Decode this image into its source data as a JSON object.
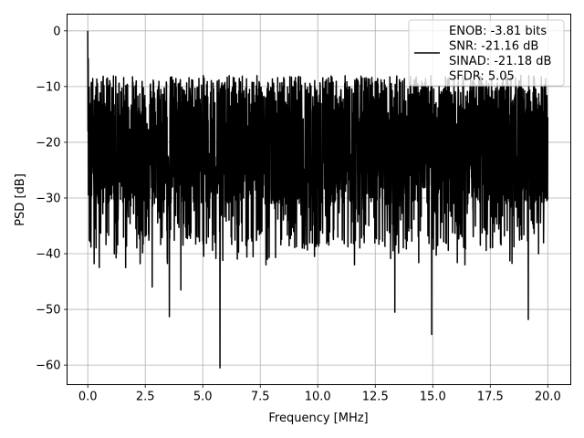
{
  "chart_data": {
    "type": "line",
    "title": "",
    "xlabel": "Frequency [MHz]",
    "ylabel": "PSD [dB]",
    "xlim": [
      -0.9,
      21.0
    ],
    "ylim": [
      -63.5,
      3.0
    ],
    "xticks": [
      0.0,
      2.5,
      5.0,
      7.5,
      10.0,
      12.5,
      15.0,
      17.5,
      20.0
    ],
    "xtick_labels": [
      "0.0",
      "2.5",
      "5.0",
      "7.5",
      "10.0",
      "12.5",
      "15.0",
      "17.5",
      "20.0"
    ],
    "yticks": [
      0,
      -10,
      -20,
      -30,
      -40,
      -50,
      -60
    ],
    "ytick_labels": [
      "0",
      "−10",
      "−20",
      "−30",
      "−40",
      "−50",
      "−60"
    ],
    "grid": true,
    "legend_position": "top-right",
    "series": [
      {
        "name": "ENOB: -3.81 bits\nSNR: -21.16 dB\nSINAD: -21.18 dB\nSFDR: 5.05",
        "color": "#000000",
        "x_range": [
          0.0,
          20.0
        ],
        "level_db": -20.0,
        "spread_db": 6.0,
        "peaks": [
          {
            "x": 0.0,
            "y": 0.0
          }
        ],
        "dips": [
          {
            "x": 0.28,
            "y": -41.8
          },
          {
            "x": 0.5,
            "y": -42.5
          },
          {
            "x": 1.65,
            "y": -42.5
          },
          {
            "x": 2.8,
            "y": -46.0
          },
          {
            "x": 3.55,
            "y": -51.3
          },
          {
            "x": 4.05,
            "y": -46.5
          },
          {
            "x": 5.75,
            "y": -60.5
          },
          {
            "x": 7.75,
            "y": -42.0
          },
          {
            "x": 11.6,
            "y": -42.0
          },
          {
            "x": 13.35,
            "y": -50.5
          },
          {
            "x": 14.95,
            "y": -54.5
          },
          {
            "x": 16.4,
            "y": -42.0
          },
          {
            "x": 19.15,
            "y": -51.8
          }
        ]
      }
    ]
  }
}
